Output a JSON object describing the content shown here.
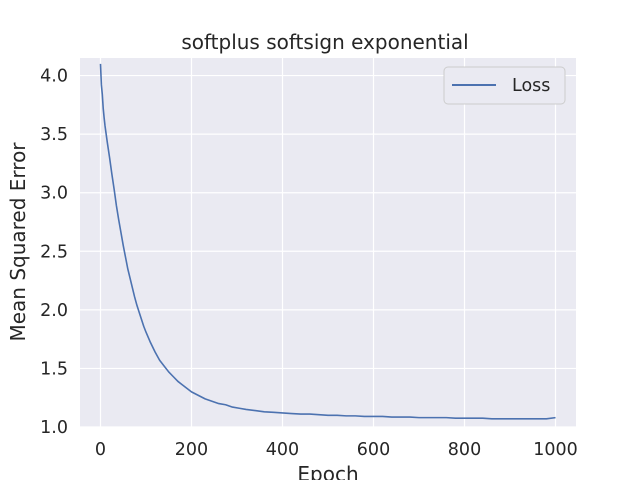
{
  "colors": {
    "plot_background": "#eaeaf2",
    "grid": "#ffffff",
    "line": "#4c72b0",
    "text": "#262626"
  },
  "chart_data": {
    "type": "line",
    "title": "softplus softsign exponential",
    "xlabel": "Epoch",
    "ylabel": "Mean Squared Error",
    "xlim": [
      -45,
      1045
    ],
    "ylim": [
      1.0,
      4.15
    ],
    "x_ticks": [
      0,
      200,
      400,
      600,
      800,
      1000
    ],
    "x_tick_labels": [
      "0",
      "200",
      "400",
      "600",
      "800",
      "1000"
    ],
    "y_ticks": [
      1.0,
      1.5,
      2.0,
      2.5,
      3.0,
      3.5,
      4.0
    ],
    "y_tick_labels": [
      "1.0",
      "1.5",
      "2.0",
      "2.5",
      "3.0",
      "3.5",
      "4.0"
    ],
    "grid": true,
    "legend": {
      "position": "top-right"
    },
    "series": [
      {
        "name": "Loss",
        "x": [
          0,
          2,
          4,
          6,
          8,
          10,
          15,
          20,
          25,
          30,
          35,
          40,
          45,
          50,
          55,
          60,
          65,
          70,
          75,
          80,
          85,
          90,
          95,
          100,
          110,
          120,
          130,
          140,
          150,
          160,
          170,
          180,
          190,
          200,
          215,
          230,
          245,
          260,
          275,
          290,
          305,
          320,
          340,
          360,
          380,
          400,
          420,
          440,
          460,
          480,
          500,
          520,
          540,
          560,
          580,
          600,
          620,
          640,
          660,
          680,
          700,
          720,
          740,
          760,
          780,
          800,
          820,
          840,
          860,
          880,
          900,
          920,
          940,
          960,
          980,
          1000
        ],
        "values": [
          4.1,
          3.92,
          3.84,
          3.72,
          3.64,
          3.57,
          3.43,
          3.3,
          3.16,
          3.03,
          2.89,
          2.77,
          2.66,
          2.55,
          2.45,
          2.35,
          2.27,
          2.19,
          2.11,
          2.04,
          1.98,
          1.92,
          1.86,
          1.81,
          1.72,
          1.64,
          1.57,
          1.52,
          1.47,
          1.43,
          1.39,
          1.36,
          1.33,
          1.3,
          1.27,
          1.24,
          1.22,
          1.2,
          1.19,
          1.17,
          1.16,
          1.15,
          1.14,
          1.13,
          1.125,
          1.12,
          1.115,
          1.11,
          1.11,
          1.105,
          1.1,
          1.1,
          1.095,
          1.095,
          1.09,
          1.09,
          1.09,
          1.085,
          1.085,
          1.085,
          1.08,
          1.08,
          1.08,
          1.08,
          1.075,
          1.075,
          1.075,
          1.075,
          1.07,
          1.07,
          1.07,
          1.07,
          1.07,
          1.07,
          1.07,
          1.08
        ]
      }
    ]
  }
}
